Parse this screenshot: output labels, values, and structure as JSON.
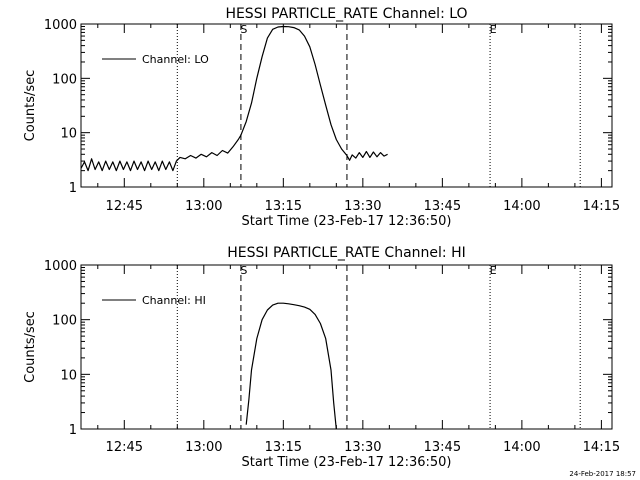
{
  "timestamp": "24-Feb-2017 18:57",
  "chart_data": [
    {
      "type": "line",
      "title": "HESSI PARTICLE_RATE Channel: LO",
      "xlabel": "Start Time (23-Feb-17 12:36:50)",
      "ylabel": "Counts/sec",
      "ylim": [
        1,
        1000
      ],
      "ylog": true,
      "xlim": [
        "12:36:50",
        "14:17:00"
      ],
      "x_ticks": [
        "12:45",
        "13:00",
        "13:15",
        "13:30",
        "13:45",
        "14:00",
        "14:15"
      ],
      "y_ticks": [
        "1",
        "10",
        "100",
        "1000"
      ],
      "legend": {
        "label": "Channel: LO",
        "position": "top-left"
      },
      "markers": [
        {
          "time": "12:55:00",
          "style": "dotted",
          "label": ""
        },
        {
          "time": "13:07:00",
          "style": "dashed",
          "label": "S"
        },
        {
          "time": "13:27:00",
          "style": "dashed",
          "label": ""
        },
        {
          "time": "13:54:00",
          "style": "dotted",
          "label": "E"
        },
        {
          "time": "14:11:00",
          "style": "dotted",
          "label": ""
        }
      ],
      "series": [
        {
          "x": [
            "12:36:50",
            "12:37:30",
            "12:38:10",
            "12:38:50",
            "12:39:30",
            "12:40:10",
            "12:40:50",
            "12:41:30",
            "12:42:10",
            "12:42:50",
            "12:43:30",
            "12:44:10",
            "12:44:50",
            "12:45:30",
            "12:46:10",
            "12:46:50",
            "12:47:30",
            "12:48:10",
            "12:48:50",
            "12:49:30",
            "12:50:10",
            "12:50:50",
            "12:51:30",
            "12:52:10",
            "12:52:50",
            "12:53:30",
            "12:54:10",
            "12:54:50",
            "12:55:30",
            "12:56:30",
            "12:57:30",
            "12:58:30",
            "12:59:30",
            "13:00:30",
            "13:01:30",
            "13:02:30",
            "13:03:30",
            "13:04:30",
            "13:05:30",
            "13:06:30",
            "13:07:00",
            "13:08:00",
            "13:09:00",
            "13:10:00",
            "13:11:00",
            "13:12:00",
            "13:13:00",
            "13:14:00",
            "13:15:00",
            "13:16:00",
            "13:17:00",
            "13:18:00",
            "13:19:00",
            "13:20:00",
            "13:21:00",
            "13:22:00",
            "13:23:00",
            "13:24:00",
            "13:25:00",
            "13:26:00",
            "13:27:00",
            "13:27:30",
            "13:28:00",
            "13:28:40",
            "13:29:20",
            "13:30:00",
            "13:30:40",
            "13:31:20",
            "13:32:00",
            "13:32:40",
            "13:33:20",
            "13:34:00",
            "13:34:40"
          ],
          "y": [
            2.2,
            2.9,
            2.0,
            3.3,
            2.1,
            2.9,
            2.0,
            3.0,
            2.1,
            2.9,
            2.0,
            3.0,
            2.1,
            2.9,
            2.0,
            3.0,
            2.1,
            2.9,
            2.0,
            3.0,
            2.1,
            2.9,
            2.0,
            3.0,
            2.1,
            2.9,
            2.0,
            3.0,
            3.5,
            3.3,
            3.8,
            3.4,
            4.0,
            3.6,
            4.3,
            3.8,
            4.7,
            4.2,
            5.5,
            7.5,
            9,
            16,
            35,
            100,
            250,
            550,
            800,
            880,
            900,
            890,
            860,
            780,
            600,
            380,
            180,
            75,
            32,
            14,
            7.5,
            5,
            3.8,
            3.1,
            3.9,
            3.4,
            4.3,
            3.5,
            4.5,
            3.5,
            4.4,
            3.6,
            4.3,
            3.7,
            4.0
          ]
        }
      ]
    },
    {
      "type": "line",
      "title": "HESSI PARTICLE_RATE Channel: HI",
      "xlabel": "Start Time (23-Feb-17 12:36:50)",
      "ylabel": "Counts/sec",
      "ylim": [
        1,
        1000
      ],
      "ylog": true,
      "xlim": [
        "12:36:50",
        "14:17:00"
      ],
      "x_ticks": [
        "12:45",
        "13:00",
        "13:15",
        "13:30",
        "13:45",
        "14:00",
        "14:15"
      ],
      "y_ticks": [
        "1",
        "10",
        "100",
        "1000"
      ],
      "legend": {
        "label": "Channel: HI",
        "position": "top-left"
      },
      "markers": [
        {
          "time": "12:55:00",
          "style": "dotted",
          "label": ""
        },
        {
          "time": "13:07:00",
          "style": "dashed",
          "label": "S"
        },
        {
          "time": "13:27:00",
          "style": "dashed",
          "label": ""
        },
        {
          "time": "13:54:00",
          "style": "dotted",
          "label": "E"
        },
        {
          "time": "14:11:00",
          "style": "dotted",
          "label": ""
        }
      ],
      "series": [
        {
          "x": [
            "13:08:00",
            "13:08:30",
            "13:09:00",
            "13:10:00",
            "13:11:00",
            "13:12:00",
            "13:13:00",
            "13:14:00",
            "13:15:00",
            "13:16:00",
            "13:17:00",
            "13:18:00",
            "13:19:00",
            "13:20:00",
            "13:21:00",
            "13:22:00",
            "13:23:00",
            "13:24:00",
            "13:24:30",
            "13:25:00"
          ],
          "y": [
            1.2,
            3.5,
            12,
            45,
            100,
            150,
            185,
            200,
            200,
            195,
            188,
            180,
            170,
            155,
            125,
            85,
            45,
            12,
            3,
            1
          ]
        }
      ]
    }
  ]
}
